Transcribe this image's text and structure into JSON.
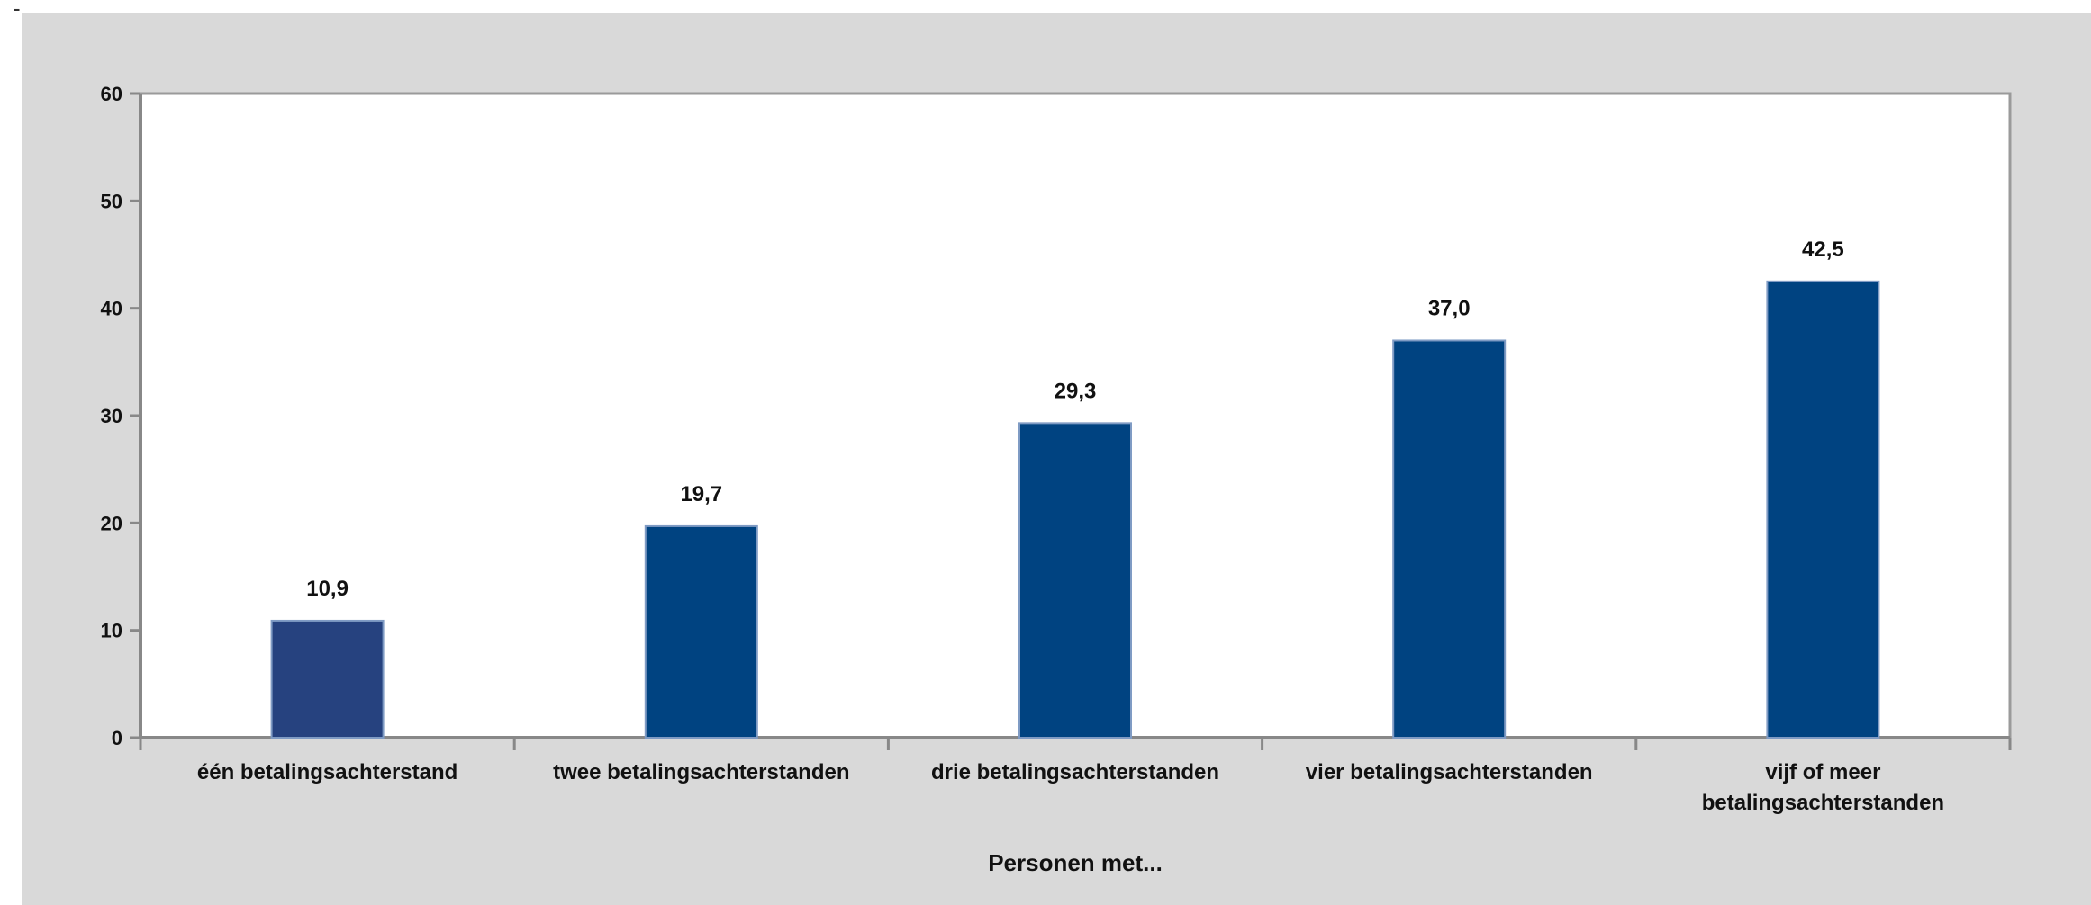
{
  "stray_mark": "-",
  "chart_data": {
    "type": "bar",
    "categories": [
      "één betalingsachterstand",
      "twee betalingsachterstanden",
      "drie betalingsachterstanden",
      "vier betalingsachterstanden",
      "vijf of meer betalingsachterstanden"
    ],
    "category_label_lines": [
      [
        "één betalingsachterstand"
      ],
      [
        "twee betalingsachterstanden"
      ],
      [
        "drie betalingsachterstanden"
      ],
      [
        "vier betalingsachterstanden"
      ],
      [
        "vijf of meer",
        "betalingsachterstanden"
      ]
    ],
    "values": [
      10.9,
      19.7,
      29.3,
      37.0,
      42.5
    ],
    "value_labels": [
      "10,9",
      "19,7",
      "29,3",
      "37,0",
      "42,5"
    ],
    "xlabel": "Personen met...",
    "ylabel": "",
    "ylim": [
      0,
      60
    ],
    "yticks": [
      0,
      10,
      20,
      30,
      40,
      50,
      60
    ],
    "grid": false,
    "legend": "none",
    "colors": {
      "bar_first": "#26427f",
      "bar": "#004381",
      "panel_background": "#d9d9d9",
      "plot_background": "#ffffff",
      "axis": "#888888"
    }
  }
}
